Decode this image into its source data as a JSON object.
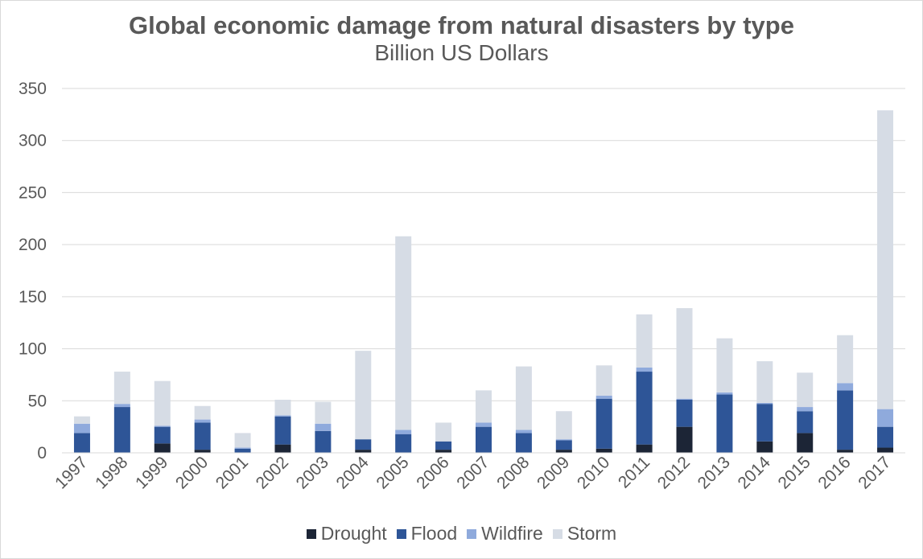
{
  "chart_data": {
    "type": "bar",
    "stacked": true,
    "title": "Global economic damage from natural disasters by type",
    "subtitle": "Billion US Dollars",
    "categories": [
      "1997",
      "1998",
      "1999",
      "2000",
      "2001",
      "2002",
      "2003",
      "2004",
      "2005",
      "2006",
      "2007",
      "2008",
      "2009",
      "2010",
      "2011",
      "2012",
      "2013",
      "2014",
      "2015",
      "2016",
      "2017"
    ],
    "series": [
      {
        "name": "Drought",
        "color": "#1c2536",
        "values": [
          0,
          0,
          9,
          3,
          0,
          8,
          0,
          3,
          0,
          3,
          0,
          0,
          3,
          4,
          8,
          25,
          0,
          11,
          19,
          3,
          5
        ]
      },
      {
        "name": "Flood",
        "color": "#2e5597",
        "values": [
          19,
          44,
          16,
          26,
          4,
          27,
          21,
          10,
          18,
          8,
          25,
          19,
          9,
          48,
          70,
          26,
          56,
          36,
          21,
          57,
          20
        ]
      },
      {
        "name": "Wildfire",
        "color": "#8faadc",
        "values": [
          9,
          3,
          1,
          3,
          1,
          1,
          7,
          0,
          4,
          0,
          4,
          3,
          1,
          3,
          4,
          1,
          2,
          1,
          4,
          7,
          17
        ]
      },
      {
        "name": "Storm",
        "color": "#d6dce5",
        "values": [
          7,
          31,
          43,
          13,
          14,
          15,
          21,
          85,
          186,
          18,
          31,
          61,
          27,
          29,
          51,
          87,
          52,
          40,
          33,
          46,
          287
        ]
      }
    ],
    "ylim": [
      0,
      350
    ],
    "yticks": [
      0,
      50,
      100,
      150,
      200,
      250,
      300,
      350
    ],
    "grid": true,
    "legend_position": "bottom"
  }
}
